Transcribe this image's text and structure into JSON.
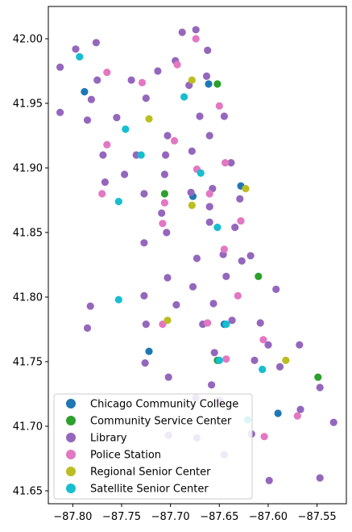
{
  "chart_data": {
    "type": "scatter",
    "title": "",
    "xlabel": "",
    "ylabel": "",
    "xlim": [
      -87.825,
      -87.52
    ],
    "ylim": [
      41.64,
      42.025
    ],
    "xticks": [
      -87.8,
      -87.75,
      -87.7,
      -87.65,
      -87.6,
      -87.55
    ],
    "xtick_labels": [
      "−87.80",
      "−87.75",
      "−87.70",
      "−87.65",
      "−87.60",
      "−87.55"
    ],
    "yticks": [
      41.65,
      41.7,
      41.75,
      41.8,
      41.85,
      41.9,
      41.95,
      42.0
    ],
    "ytick_labels": [
      "41.65",
      "41.70",
      "41.75",
      "41.80",
      "41.85",
      "41.90",
      "41.95",
      "42.00"
    ],
    "grid": false,
    "legend_position": "lower-left",
    "series": [
      {
        "name": "Chicago Community College",
        "color": "#1f77b4",
        "points": [
          [
            -87.788,
            41.959
          ],
          [
            -87.661,
            41.965
          ],
          [
            -87.677,
            41.878
          ],
          [
            -87.628,
            41.886
          ],
          [
            -87.645,
            41.779
          ],
          [
            -87.722,
            41.758
          ],
          [
            -87.59,
            41.71
          ]
        ]
      },
      {
        "name": "Community Service Center",
        "color": "#2ca02c",
        "points": [
          [
            -87.652,
            41.965
          ],
          [
            -87.706,
            41.88
          ],
          [
            -87.61,
            41.816
          ],
          [
            -87.652,
            41.751
          ],
          [
            -87.549,
            41.738
          ]
        ]
      },
      {
        "name": "Library",
        "color": "#9467bd",
        "points": [
          [
            -87.813,
            41.978
          ],
          [
            -87.797,
            41.992
          ],
          [
            -87.776,
            41.997
          ],
          [
            -87.688,
            42.005
          ],
          [
            -87.674,
            42.007
          ],
          [
            -87.775,
            41.968
          ],
          [
            -87.74,
            41.968
          ],
          [
            -87.713,
            41.975
          ],
          [
            -87.695,
            41.983
          ],
          [
            -87.681,
            41.964
          ],
          [
            -87.662,
            41.991
          ],
          [
            -87.663,
            41.971
          ],
          [
            -87.813,
            41.943
          ],
          [
            -87.781,
            41.953
          ],
          [
            -87.785,
            41.937
          ],
          [
            -87.755,
            41.939
          ],
          [
            -87.725,
            41.954
          ],
          [
            -87.67,
            41.94
          ],
          [
            -87.645,
            41.94
          ],
          [
            -87.703,
            41.925
          ],
          [
            -87.66,
            41.925
          ],
          [
            -87.769,
            41.91
          ],
          [
            -87.735,
            41.91
          ],
          [
            -87.705,
            41.91
          ],
          [
            -87.678,
            41.913
          ],
          [
            -87.638,
            41.904
          ],
          [
            -87.767,
            41.889
          ],
          [
            -87.747,
            41.895
          ],
          [
            -87.706,
            41.895
          ],
          [
            -87.727,
            41.88
          ],
          [
            -87.679,
            41.881
          ],
          [
            -87.657,
            41.884
          ],
          [
            -87.629,
            41.876
          ],
          [
            -87.709,
            41.865
          ],
          [
            -87.704,
            41.85
          ],
          [
            -87.66,
            41.87
          ],
          [
            -87.66,
            41.858
          ],
          [
            -87.634,
            41.854
          ],
          [
            -87.727,
            41.842
          ],
          [
            -87.673,
            41.83
          ],
          [
            -87.646,
            41.833
          ],
          [
            -87.627,
            41.828
          ],
          [
            -87.618,
            41.832
          ],
          [
            -87.703,
            41.815
          ],
          [
            -87.643,
            41.816
          ],
          [
            -87.677,
            41.808
          ],
          [
            -87.592,
            41.806
          ],
          [
            -87.782,
            41.793
          ],
          [
            -87.727,
            41.801
          ],
          [
            -87.694,
            41.794
          ],
          [
            -87.656,
            41.795
          ],
          [
            -87.725,
            41.779
          ],
          [
            -87.667,
            41.779
          ],
          [
            -87.637,
            41.782
          ],
          [
            -87.608,
            41.78
          ],
          [
            -87.6,
            41.763
          ],
          [
            -87.568,
            41.763
          ],
          [
            -87.785,
            41.776
          ],
          [
            -87.726,
            41.749
          ],
          [
            -87.655,
            41.757
          ],
          [
            -87.614,
            41.751
          ],
          [
            -87.588,
            41.746
          ],
          [
            -87.547,
            41.73
          ],
          [
            -87.702,
            41.738
          ],
          [
            -87.658,
            41.732
          ],
          [
            -87.674,
            41.722
          ],
          [
            -87.65,
            41.72
          ],
          [
            -87.567,
            41.713
          ],
          [
            -87.533,
            41.703
          ],
          [
            -87.702,
            41.693
          ],
          [
            -87.673,
            41.691
          ],
          [
            -87.617,
            41.694
          ],
          [
            -87.645,
            41.678
          ],
          [
            -87.599,
            41.658
          ],
          [
            -87.547,
            41.66
          ]
        ]
      },
      {
        "name": "Police Station",
        "color": "#e377c2",
        "points": [
          [
            -87.674,
            42.0
          ],
          [
            -87.765,
            41.974
          ],
          [
            -87.729,
            41.966
          ],
          [
            -87.693,
            41.98
          ],
          [
            -87.65,
            41.948
          ],
          [
            -87.765,
            41.918
          ],
          [
            -87.696,
            41.921
          ],
          [
            -87.673,
            41.899
          ],
          [
            -87.644,
            41.904
          ],
          [
            -87.77,
            41.88
          ],
          [
            -87.66,
            41.88
          ],
          [
            -87.706,
            41.873
          ],
          [
            -87.708,
            41.857
          ],
          [
            -87.628,
            41.859
          ],
          [
            -87.645,
            41.837
          ],
          [
            -87.631,
            41.801
          ],
          [
            -87.708,
            41.779
          ],
          [
            -87.662,
            41.78
          ],
          [
            -87.605,
            41.767
          ],
          [
            -87.643,
            41.752
          ],
          [
            -87.57,
            41.708
          ],
          [
            -87.604,
            41.692
          ]
        ]
      },
      {
        "name": "Regional Senior Center",
        "color": "#bcbd22",
        "points": [
          [
            -87.678,
            41.968
          ],
          [
            -87.722,
            41.938
          ],
          [
            -87.623,
            41.884
          ],
          [
            -87.678,
            41.871
          ],
          [
            -87.703,
            41.782
          ],
          [
            -87.582,
            41.751
          ]
        ]
      },
      {
        "name": "Satellite Senior Center",
        "color": "#17becf",
        "points": [
          [
            -87.793,
            41.986
          ],
          [
            -87.686,
            41.955
          ],
          [
            -87.746,
            41.93
          ],
          [
            -87.73,
            41.91
          ],
          [
            -87.669,
            41.896
          ],
          [
            -87.652,
            41.854
          ],
          [
            -87.753,
            41.874
          ],
          [
            -87.753,
            41.798
          ],
          [
            -87.643,
            41.779
          ],
          [
            -87.65,
            41.751
          ],
          [
            -87.606,
            41.744
          ],
          [
            -87.621,
            41.705
          ]
        ]
      }
    ]
  }
}
